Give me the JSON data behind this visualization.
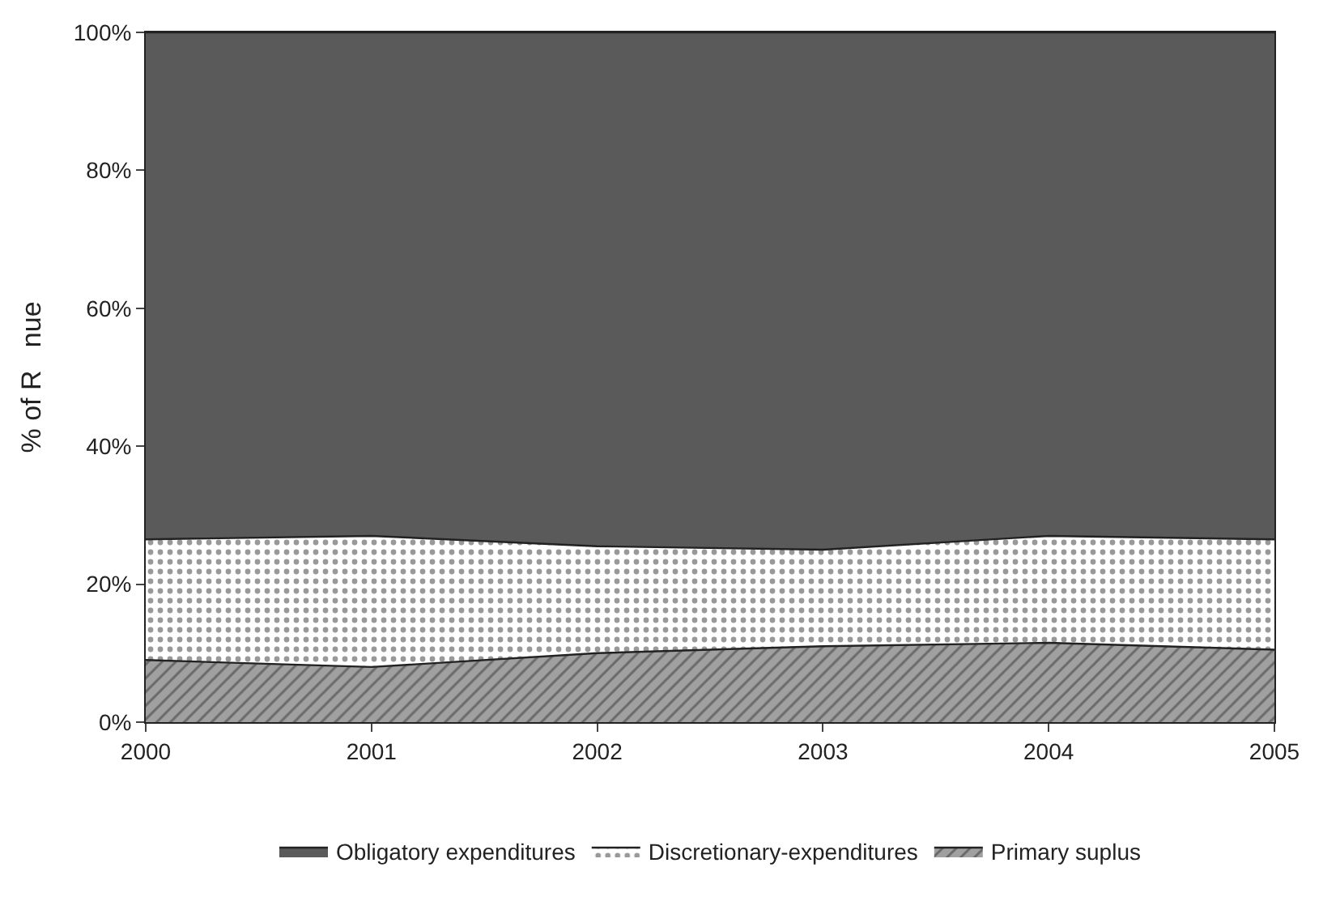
{
  "chart_data": {
    "type": "area",
    "stacked": true,
    "ylabel": "% of R   nue",
    "x": [
      2000,
      2001,
      2002,
      2003,
      2004,
      2005
    ],
    "series": [
      {
        "name": "Primary suplus",
        "color": "#a0a0a0",
        "values": [
          9,
          8,
          10,
          11,
          11.5,
          10.5
        ]
      },
      {
        "name": "Discretionary-expenditures",
        "color": "#ffffff",
        "values": [
          17.5,
          19,
          15.5,
          14,
          15.5,
          16
        ]
      },
      {
        "name": "Obligatory expenditures",
        "color": "#5a5a5a",
        "values": [
          73.5,
          73,
          74.5,
          75,
          73,
          73.5
        ]
      }
    ],
    "xlim": [
      2000,
      2005
    ],
    "xticks": [
      2000,
      2001,
      2002,
      2003,
      2004,
      2005
    ],
    "ylim": [
      0,
      100
    ],
    "yticks": [
      {
        "value": 0,
        "label": "0%"
      },
      {
        "value": 20,
        "label": "20%"
      },
      {
        "value": 40,
        "label": "40%"
      },
      {
        "value": 60,
        "label": "60%"
      },
      {
        "value": 80,
        "label": "80%"
      },
      {
        "value": 100,
        "label": "100%"
      }
    ],
    "legend": "bottom",
    "marker": "none",
    "line_style": "solid"
  }
}
